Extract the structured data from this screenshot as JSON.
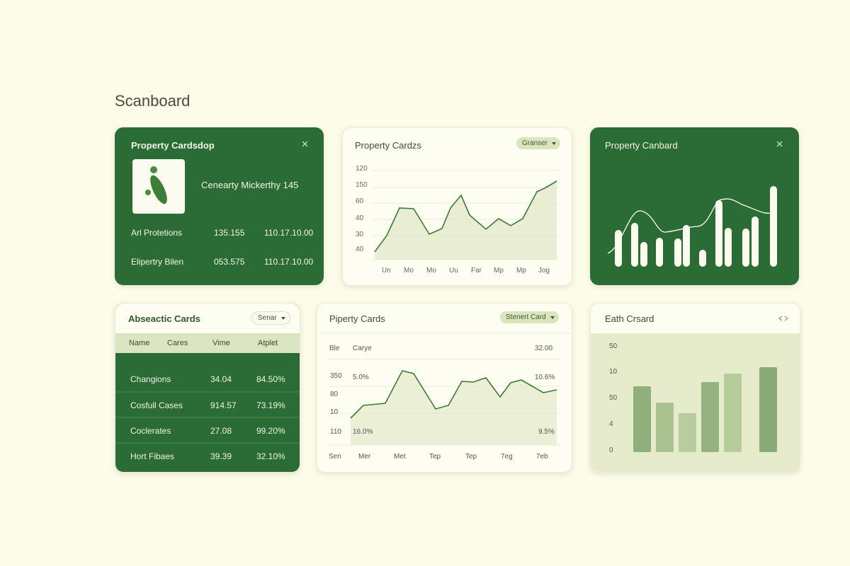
{
  "title": "Scanboard",
  "card1": {
    "title": "Property Cardsdop",
    "name": "Cenearty Mickerthy 145",
    "rows": [
      [
        "Arl Protetions",
        "135.155",
        "110.17.10.00"
      ],
      [
        "Elipertry Bilen",
        "053.575",
        "110.17.10.00"
      ]
    ]
  },
  "card2": {
    "title": "Property Cardzs",
    "badge": "Granser",
    "ylabels": [
      "120",
      "150",
      "60",
      "40",
      "30",
      "40"
    ],
    "xlabels": [
      "Un",
      "Mo",
      "Mo",
      "Uu",
      "Far",
      "Mp",
      "Mp",
      "Jog"
    ]
  },
  "card3": {
    "title": "Property Canbard"
  },
  "card4": {
    "title": "Abseactic Cards",
    "badge": "Senar",
    "header": [
      "Name",
      "Cares",
      "Vime",
      "Atplet"
    ],
    "rows": [
      [
        "Changions",
        "34.04",
        "84.50%"
      ],
      [
        "Cosfull Cases",
        "914.57",
        "73.19%"
      ],
      [
        "Coclerates",
        "27.08",
        "99.20%"
      ],
      [
        "Hort Fibaes",
        "39.39",
        "32.10%"
      ]
    ]
  },
  "card5": {
    "title": "Piperty Cards",
    "badge": "Stenert Card",
    "head": [
      "Ble",
      "Carye",
      "32.00"
    ],
    "ylabels": [
      "350",
      "80",
      "10",
      "110"
    ],
    "notes": [
      "5.0%",
      "16.0%",
      "10.6%",
      "9.5%"
    ],
    "xlabels": [
      "Sen",
      "Mer",
      "Met",
      "Tep",
      "Tep",
      "7eg",
      "7eb"
    ]
  },
  "card6": {
    "title": "Eath Crsard",
    "ylabels": [
      "50",
      "10",
      "50",
      "4",
      "0"
    ]
  }
}
